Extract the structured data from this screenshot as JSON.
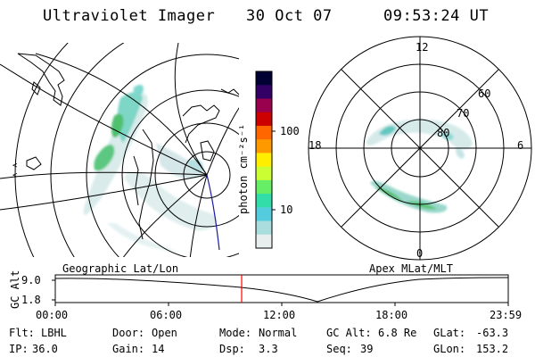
{
  "header": {
    "instrument": "Ultraviolet Imager",
    "date": "30 Oct 07",
    "time": "09:53:24 UT"
  },
  "left_panel": {
    "caption": "Geographic Lat/Lon"
  },
  "right_panel": {
    "caption": "Apex MLat/MLT",
    "mlt_labels": {
      "top": "12",
      "left": "18",
      "right": "6",
      "bottom": "0"
    },
    "lat_labels": [
      "60",
      "70",
      "80"
    ]
  },
  "colorbar": {
    "unit_label": "photon cm⁻²s⁻¹",
    "ticks": [
      "100",
      "10"
    ],
    "scale": "log",
    "colors": [
      "#000033",
      "#330066",
      "#99004d",
      "#cc0000",
      "#ff6600",
      "#ff9900",
      "#ffee00",
      "#ccff33",
      "#66ee66",
      "#33ddaa",
      "#55ccdd",
      "#aadddd",
      "#e8eeee"
    ]
  },
  "altitude_plot": {
    "ylabel": "GC Alt",
    "y_ticks": [
      "9.0",
      "1.8"
    ],
    "x_ticks": [
      "00:00",
      "06:00",
      "12:00",
      "18:00",
      "23:59"
    ],
    "current_time_marker": "09:53",
    "marker_color": "#ff0000"
  },
  "footer": {
    "row1": [
      {
        "label": "Flt:",
        "value": "LBHL"
      },
      {
        "label": "Door:",
        "value": "Open"
      },
      {
        "label": "Mode:",
        "value": "Normal"
      },
      {
        "label": "GC Alt:",
        "value": "6.8 Re"
      },
      {
        "label": "GLat:",
        "value": "-63.3"
      }
    ],
    "row2": [
      {
        "label": "IP:",
        "value": "36.0"
      },
      {
        "label": "Gain:",
        "value": "14"
      },
      {
        "label": "Dsp:",
        "value": "3.3"
      },
      {
        "label": "Seq:",
        "value": "39"
      },
      {
        "label": "GLon:",
        "value": "153.2"
      }
    ]
  }
}
